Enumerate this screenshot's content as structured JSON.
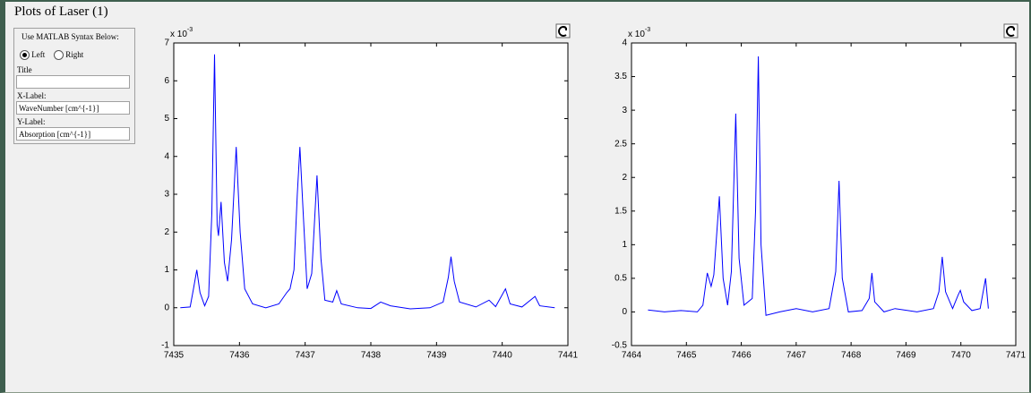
{
  "window": {
    "title": "Plots of Laser (1)"
  },
  "panel": {
    "heading": "Use MATLAB Syntax Below:",
    "radio_left": "Left",
    "radio_right": "Right",
    "title_label": "Title",
    "xlabel_label": "X-Label:",
    "xlabel_value": "WaveNumber [cm^{-1}]",
    "ylabel_label": "Y-Label:",
    "ylabel_value": "Absorption [cm^{-1}]"
  },
  "chart_data": [
    {
      "type": "line",
      "color": "#0000ff",
      "y_scale_base": "x 10",
      "y_scale_exponent": "-3",
      "xlim": [
        7435,
        7441
      ],
      "xticks": [
        7435,
        7436,
        7437,
        7438,
        7439,
        7440,
        7441
      ],
      "ylim": [
        -1,
        7
      ],
      "yticks": [
        -1,
        0,
        1,
        2,
        3,
        4,
        5,
        6,
        7
      ],
      "x": [
        7435.1,
        7435.25,
        7435.3,
        7435.35,
        7435.4,
        7435.47,
        7435.53,
        7435.58,
        7435.62,
        7435.66,
        7435.68,
        7435.72,
        7435.77,
        7435.82,
        7435.88,
        7435.95,
        7436.01,
        7436.08,
        7436.2,
        7436.4,
        7436.6,
        7436.72,
        7436.77,
        7436.83,
        7436.88,
        7436.92,
        7436.97,
        7437.03,
        7437.1,
        7437.18,
        7437.24,
        7437.3,
        7437.42,
        7437.48,
        7437.55,
        7437.8,
        7438.0,
        7438.15,
        7438.3,
        7438.6,
        7438.9,
        7439.1,
        7439.18,
        7439.22,
        7439.27,
        7439.35,
        7439.6,
        7439.8,
        7439.9,
        7440.05,
        7440.12,
        7440.3,
        7440.5,
        7440.57,
        7440.8
      ],
      "values": [
        0.0,
        0.02,
        0.5,
        1.0,
        0.4,
        0.05,
        0.3,
        2.5,
        6.7,
        2.2,
        1.9,
        2.8,
        1.2,
        0.7,
        1.8,
        4.25,
        2.0,
        0.5,
        0.1,
        0.0,
        0.1,
        0.4,
        0.5,
        1.0,
        3.0,
        4.25,
        2.5,
        0.5,
        0.9,
        3.5,
        1.3,
        0.2,
        0.15,
        0.45,
        0.1,
        0.0,
        -0.02,
        0.15,
        0.05,
        -0.03,
        0.0,
        0.15,
        0.8,
        1.35,
        0.7,
        0.15,
        0.02,
        0.2,
        0.03,
        0.5,
        0.1,
        0.02,
        0.3,
        0.05,
        0.0
      ]
    },
    {
      "type": "line",
      "color": "#0000ff",
      "y_scale_base": "x 10",
      "y_scale_exponent": "-3",
      "xlim": [
        7464,
        7471
      ],
      "xticks": [
        7464,
        7465,
        7466,
        7467,
        7468,
        7469,
        7470,
        7471
      ],
      "ylim": [
        -0.5,
        4
      ],
      "yticks": [
        -0.5,
        0,
        0.5,
        1,
        1.5,
        2,
        2.5,
        3,
        3.5,
        4
      ],
      "x": [
        7464.3,
        7464.6,
        7464.9,
        7465.2,
        7465.3,
        7465.38,
        7465.45,
        7465.5,
        7465.6,
        7465.67,
        7465.75,
        7465.82,
        7465.9,
        7465.96,
        7466.05,
        7466.2,
        7466.26,
        7466.31,
        7466.36,
        7466.45,
        7466.7,
        7467.0,
        7467.3,
        7467.6,
        7467.72,
        7467.78,
        7467.84,
        7467.95,
        7468.2,
        7468.33,
        7468.38,
        7468.43,
        7468.6,
        7468.8,
        7469.2,
        7469.5,
        7469.6,
        7469.66,
        7469.72,
        7469.85,
        7469.95,
        7469.99,
        7470.05,
        7470.2,
        7470.35,
        7470.45,
        7470.5
      ],
      "values": [
        0.03,
        0.0,
        0.02,
        0.0,
        0.1,
        0.58,
        0.38,
        0.55,
        1.72,
        0.5,
        0.1,
        0.6,
        2.95,
        0.8,
        0.1,
        0.2,
        1.5,
        3.8,
        1.0,
        -0.05,
        0.0,
        0.05,
        0.0,
        0.05,
        0.6,
        1.95,
        0.5,
        0.0,
        0.02,
        0.2,
        0.58,
        0.15,
        0.0,
        0.05,
        0.0,
        0.05,
        0.3,
        0.82,
        0.3,
        0.05,
        0.25,
        0.32,
        0.15,
        0.02,
        0.05,
        0.5,
        0.05
      ]
    }
  ]
}
